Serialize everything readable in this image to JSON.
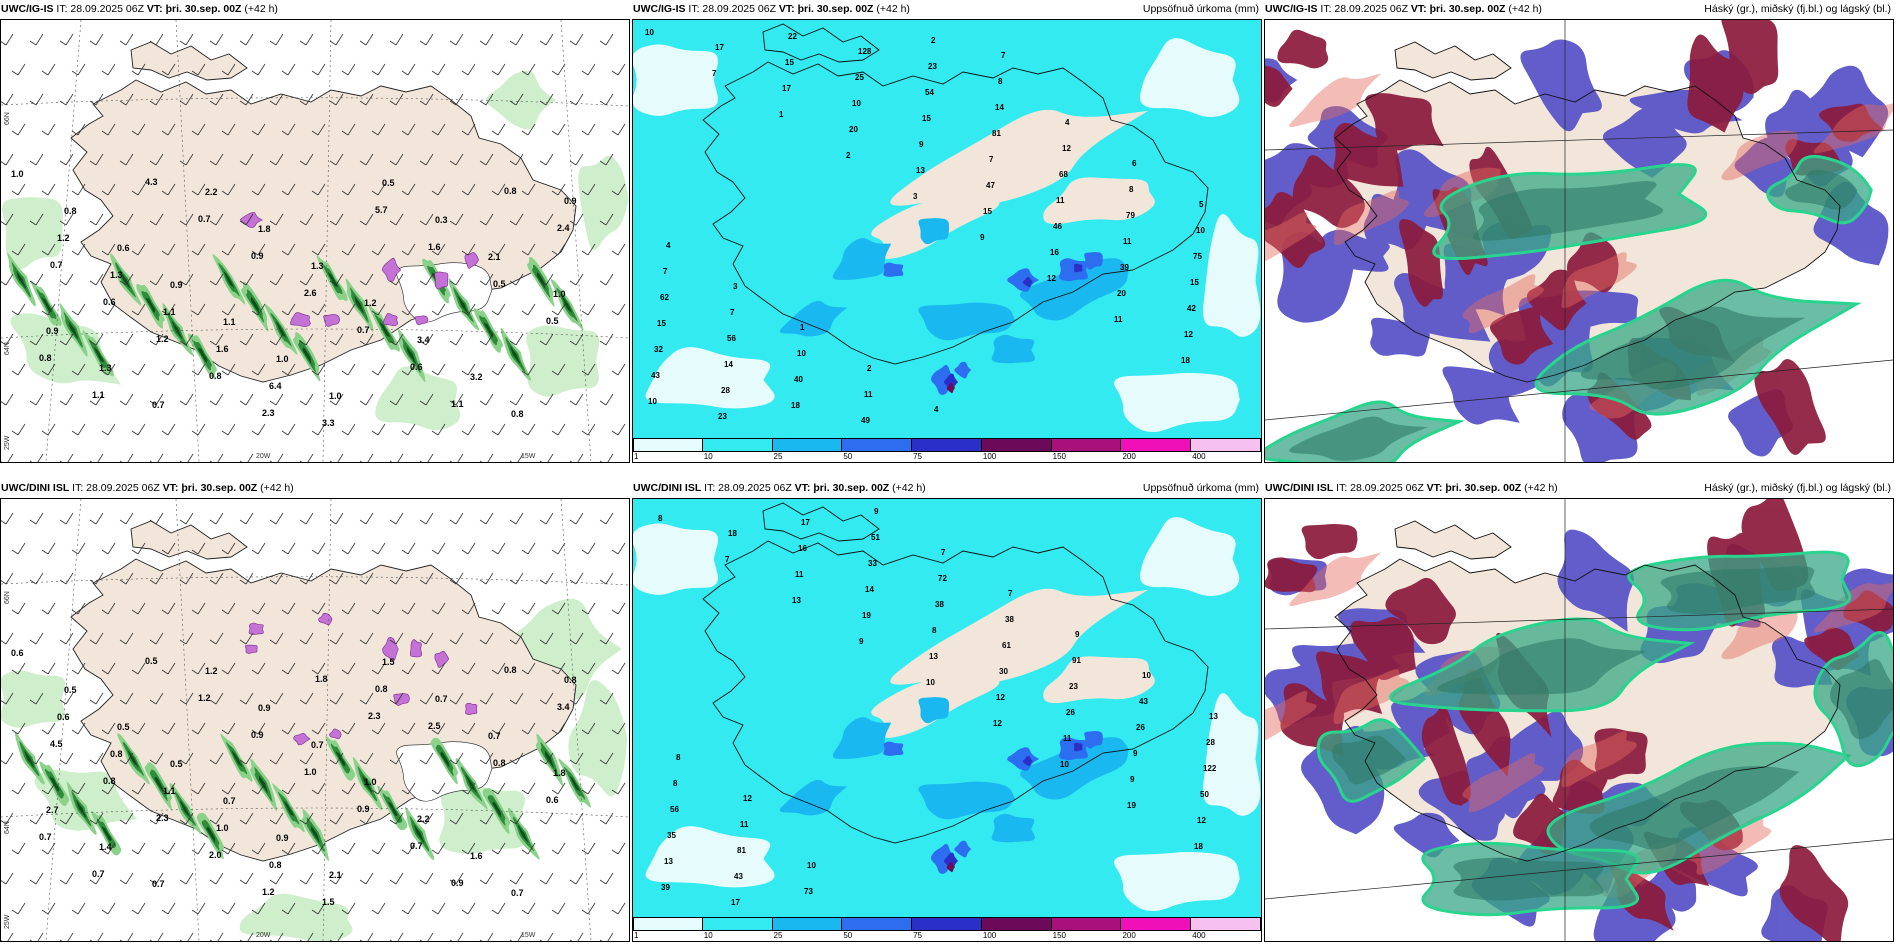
{
  "panels": [
    {
      "id": "wind-igis",
      "title_model": "UWC/IG-IS",
      "title_rest": " IT: 28.09.2025 06Z ",
      "title_vt": "VT: þri. 30.sep. 00Z",
      "title_lead": " (+42 h)",
      "title_right": ""
    },
    {
      "id": "precip-igis",
      "title_model": "UWC/IG-IS",
      "title_rest": " IT: 28.09.2025 06Z ",
      "title_vt": "VT: þri. 30.sep. 00Z",
      "title_lead": " (+42 h)",
      "title_right": "Uppsöfnuð úrkoma (mm)"
    },
    {
      "id": "cloud-igis",
      "title_model": "UWC/IG-IS",
      "title_rest": " IT: 28.09.2025 06Z ",
      "title_vt": "VT: þri. 30.sep. 00Z",
      "title_lead": " (+42 h)",
      "title_right": "Háský (gr.), miðský (fj.bl.) og lágský (bl.)"
    },
    {
      "id": "wind-dini",
      "title_model": "UWC/DINI ISL",
      "title_rest": " IT: 28.09.2025 06Z ",
      "title_vt": "VT: þri. 30.sep. 00Z",
      "title_lead": " (+42 h)",
      "title_right": ""
    },
    {
      "id": "precip-dini",
      "title_model": "UWC/DINI ISL",
      "title_rest": " IT: 28.09.2025 06Z ",
      "title_vt": "VT: þri. 30.sep. 00Z",
      "title_lead": " (+42 h)",
      "title_right": "Uppsöfnuð úrkoma (mm)"
    },
    {
      "id": "cloud-dini",
      "title_model": "UWC/DINI ISL",
      "title_rest": " IT: 28.09.2025 06Z ",
      "title_vt": "VT: þri. 30.sep. 00Z",
      "title_lead": " (+42 h)",
      "title_right": "Háský (gr.), miðský (fj.bl.) og lágský (bl.)"
    }
  ],
  "axis_labels": {
    "lat66": "66N",
    "lat64": "64N",
    "lon25": "25W",
    "lon20": "20W",
    "lon15": "15W",
    "lat66b": "66N",
    "lat64b": "64N"
  },
  "colorbar": {
    "ticks": [
      "1",
      "10",
      "25",
      "50",
      "75",
      "100",
      "150",
      "200",
      "400"
    ],
    "colors": [
      "#e6fcfc",
      "#33eaf0",
      "#1ab8f0",
      "#2d6ef0",
      "#2a2fc8",
      "#6c0a5a",
      "#a8107a",
      "#f010b8",
      "#f6c0f0"
    ]
  },
  "wind_labels_igis": [
    "1.0",
    "0.8",
    "0.6",
    "0.9",
    "1.1",
    "1.0",
    "1.0",
    "0.5",
    "0.3",
    "2.1",
    "1.0",
    "0.9",
    "1.3",
    "0.7",
    "2.2",
    "1.8",
    "1.3",
    "1.2",
    "3.4",
    "3.2",
    "0.8",
    "0.9",
    "1.2",
    "1.3",
    "1.1",
    "1.6",
    "6.4",
    "3.3",
    "5.7",
    "1.6",
    "0.5",
    "0.5",
    "0.8",
    "1.1",
    "4.3",
    "0.7",
    "0.9",
    "2.6",
    "0.7",
    "0.6",
    "1.1",
    "0.8",
    "2.4",
    "0.7",
    "0.6",
    "1.2",
    "0.8",
    "2.3"
  ],
  "wind_labels_dini": [
    "0.6",
    "0.5",
    "0.5",
    "0.5",
    "0.7",
    "0.9",
    "2.1",
    "1.5",
    "0.7",
    "0.7",
    "1.8",
    "2.7",
    "1.4",
    "0.7",
    "1.2",
    "0.9",
    "0.7",
    "1.0",
    "2.2",
    "1.6",
    "0.7",
    "0.8",
    "0.6",
    "0.8",
    "1.1",
    "1.0",
    "0.8",
    "1.5",
    "0.8",
    "2.5",
    "0.8",
    "0.6",
    "0.7",
    "0.7",
    "0.5",
    "1.2",
    "0.9",
    "1.0",
    "0.9",
    "0.7",
    "0.9",
    "0.8",
    "3.4",
    "4.5",
    "0.8",
    "2.3",
    "2.0",
    "1.2",
    "1.8",
    "2.3"
  ],
  "precip_labels_igis": [
    "10",
    "7",
    "1",
    "2",
    "3",
    "9",
    "12",
    "11",
    "18",
    "10",
    "17",
    "17",
    "20",
    "13",
    "15",
    "16",
    "20",
    "12",
    "43",
    "23",
    "15",
    "10",
    "9",
    "47",
    "46",
    "39",
    "42",
    "32",
    "28",
    "22",
    "25",
    "15",
    "7",
    "11",
    "11",
    "15",
    "15",
    "14",
    "18",
    "128",
    "54",
    "81",
    "68",
    "79",
    "75",
    "62",
    "56",
    "40",
    "49",
    "23",
    "14",
    "12",
    "8",
    "10",
    "7",
    "7",
    "10",
    "11",
    "2",
    "8",
    "4",
    "6",
    "5",
    "4",
    "3",
    "1",
    "2",
    "4",
    "7"
  ],
  "precip_labels_dini": [
    "8",
    "7",
    "13",
    "9",
    "10",
    "12",
    "10",
    "19",
    "18",
    "39",
    "18",
    "11",
    "19",
    "13",
    "12",
    "11",
    "9",
    "12",
    "13",
    "17",
    "16",
    "14",
    "8",
    "30",
    "26",
    "9",
    "50",
    "35",
    "43",
    "17",
    "33",
    "38",
    "61",
    "23",
    "26",
    "122",
    "56",
    "81",
    "73",
    "51",
    "72",
    "38",
    "91",
    "43",
    "28",
    "8",
    "11",
    "10",
    "9",
    "7",
    "7",
    "9",
    "10",
    "13",
    "8",
    "12"
  ]
}
